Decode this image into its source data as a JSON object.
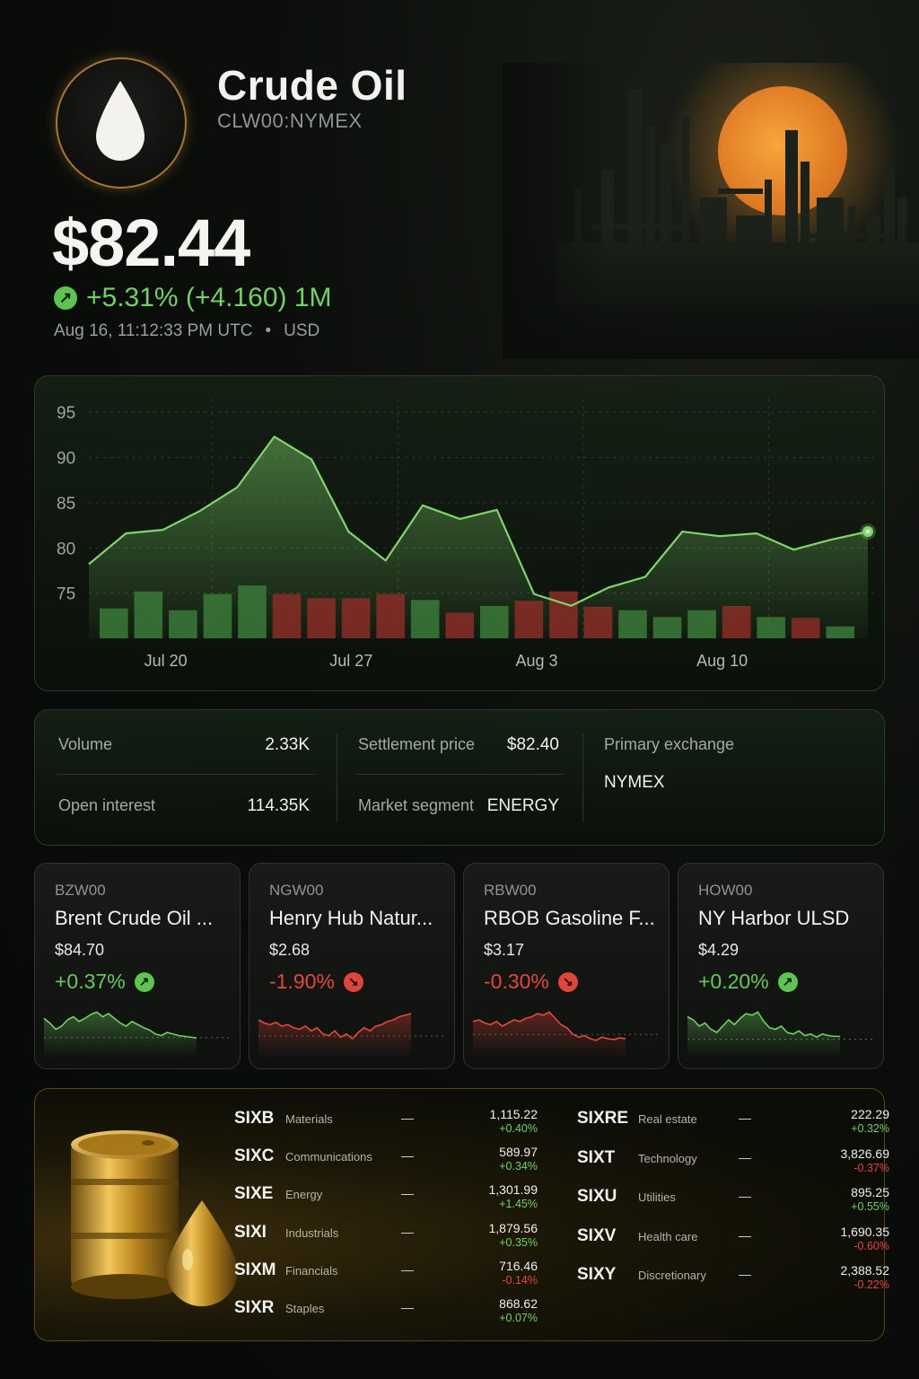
{
  "header": {
    "title": "Crude Oil",
    "ticker": "CLW00:NYMEX",
    "price": "$82.44",
    "change": "+5.31% (+4.160) 1M",
    "timestamp": "Aug 16, 11:12:33 PM UTC",
    "currency": "USD",
    "icons": {
      "logo": "oil-drop-icon",
      "change": "arrow-up-right-icon"
    }
  },
  "chart_data": {
    "type": "line",
    "ylim": [
      70,
      97
    ],
    "yticks": [
      "95",
      "90",
      "85",
      "80",
      "75"
    ],
    "ytick_values": [
      95,
      90,
      85,
      80,
      75
    ],
    "xtick_labels": [
      "Jul 20",
      "Jul 27",
      "Aug 3",
      "Aug 10"
    ],
    "xtick_index": [
      2,
      7,
      12,
      17
    ],
    "line": [
      78.2,
      81.6,
      82.0,
      84.1,
      86.7,
      92.3,
      89.8,
      81.8,
      78.6,
      84.7,
      83.2,
      84.2,
      74.9,
      73.6,
      75.6,
      76.8,
      81.8,
      81.3,
      81.6,
      79.8,
      80.9,
      81.8
    ],
    "volume": [
      {
        "h": 0.35,
        "dir": "up"
      },
      {
        "h": 0.55,
        "dir": "up"
      },
      {
        "h": 0.33,
        "dir": "up"
      },
      {
        "h": 0.52,
        "dir": "up"
      },
      {
        "h": 0.62,
        "dir": "up"
      },
      {
        "h": 0.52,
        "dir": "down"
      },
      {
        "h": 0.47,
        "dir": "down"
      },
      {
        "h": 0.47,
        "dir": "down"
      },
      {
        "h": 0.52,
        "dir": "down"
      },
      {
        "h": 0.45,
        "dir": "up"
      },
      {
        "h": 0.3,
        "dir": "down"
      },
      {
        "h": 0.38,
        "dir": "up"
      },
      {
        "h": 0.44,
        "dir": "down"
      },
      {
        "h": 0.55,
        "dir": "down"
      },
      {
        "h": 0.37,
        "dir": "down"
      },
      {
        "h": 0.33,
        "dir": "up"
      },
      {
        "h": 0.25,
        "dir": "up"
      },
      {
        "h": 0.33,
        "dir": "up"
      },
      {
        "h": 0.38,
        "dir": "down"
      },
      {
        "h": 0.25,
        "dir": "up"
      },
      {
        "h": 0.24,
        "dir": "down"
      },
      {
        "h": 0.14,
        "dir": "up"
      }
    ],
    "colors": {
      "line": "#7fd66a",
      "up_bar": "#3a7a38",
      "down_bar": "#8a2d26"
    }
  },
  "stats": {
    "volume_label": "Volume",
    "volume_value": "2.33K",
    "open_interest_label": "Open interest",
    "open_interest_value": "114.35K",
    "settlement_label": "Settlement price",
    "settlement_value": "$82.40",
    "segment_label": "Market segment",
    "segment_value": "ENERGY",
    "exchange_label": "Primary exchange",
    "exchange_value": "NYMEX"
  },
  "related": [
    {
      "symbol": "BZW00",
      "name": "Brent Crude Oil ...",
      "price": "$84.70",
      "change": "+0.37%",
      "dir": "up",
      "spark": [
        50,
        44,
        36,
        40,
        48,
        52,
        46,
        50,
        55,
        58,
        52,
        56,
        50,
        44,
        40,
        46,
        42,
        38,
        35,
        30,
        28,
        32,
        30,
        28,
        27,
        26,
        25
      ]
    },
    {
      "symbol": "NGW00",
      "name": "Henry Hub Natur...",
      "price": "$2.68",
      "change": "-1.90%",
      "dir": "down",
      "spark": [
        48,
        44,
        42,
        45,
        40,
        42,
        38,
        36,
        40,
        34,
        38,
        30,
        28,
        34,
        26,
        30,
        24,
        32,
        38,
        34,
        40,
        42,
        46,
        48,
        52,
        54,
        56
      ]
    },
    {
      "symbol": "RBW00",
      "name": "RBOB Gasoline F...",
      "price": "$3.17",
      "change": "-0.30%",
      "dir": "down",
      "spark": [
        46,
        48,
        44,
        42,
        46,
        40,
        44,
        48,
        46,
        50,
        52,
        56,
        54,
        58,
        50,
        42,
        38,
        30,
        26,
        28,
        24,
        22,
        26,
        24,
        23,
        25,
        24
      ]
    },
    {
      "symbol": "HOW00",
      "name": "NY Harbor ULSD",
      "price": "$4.29",
      "change": "+0.20%",
      "dir": "up",
      "spark": [
        52,
        48,
        40,
        44,
        36,
        32,
        40,
        48,
        42,
        50,
        56,
        54,
        58,
        46,
        38,
        36,
        40,
        32,
        30,
        34,
        28,
        30,
        26,
        30,
        28,
        27,
        27
      ]
    }
  ],
  "sectors_left": [
    {
      "symbol": "SIXB",
      "name": "Materials",
      "value": "1,115.22",
      "change": "+0.40%",
      "dir": "up"
    },
    {
      "symbol": "SIXC",
      "name": "Communications",
      "value": "589.97",
      "change": "+0.34%",
      "dir": "up"
    },
    {
      "symbol": "SIXE",
      "name": "Energy",
      "value": "1,301.99",
      "change": "+1.45%",
      "dir": "up"
    },
    {
      "symbol": "SIXI",
      "name": "Industrials",
      "value": "1,879.56",
      "change": "+0.35%",
      "dir": "up"
    },
    {
      "symbol": "SIXM",
      "name": "Financials",
      "value": "716.46",
      "change": "-0.14%",
      "dir": "down"
    },
    {
      "symbol": "SIXR",
      "name": "Staples",
      "value": "868.62",
      "change": "+0.07%",
      "dir": "up"
    }
  ],
  "sectors_right": [
    {
      "symbol": "SIXRE",
      "name": "Real estate",
      "value": "222.29",
      "change": "+0.32%",
      "dir": "up"
    },
    {
      "symbol": "SIXT",
      "name": "Technology",
      "value": "3,826.69",
      "change": "-0.37%",
      "dir": "down"
    },
    {
      "symbol": "SIXU",
      "name": "Utilities",
      "value": "895.25",
      "change": "+0.55%",
      "dir": "up"
    },
    {
      "symbol": "SIXV",
      "name": "Health care",
      "value": "1,690.35",
      "change": "-0.60%",
      "dir": "down"
    },
    {
      "symbol": "SIXY",
      "name": "Discretionary",
      "value": "2,388.52",
      "change": "-0.22%",
      "dir": "down"
    }
  ],
  "sector_dash": "—"
}
